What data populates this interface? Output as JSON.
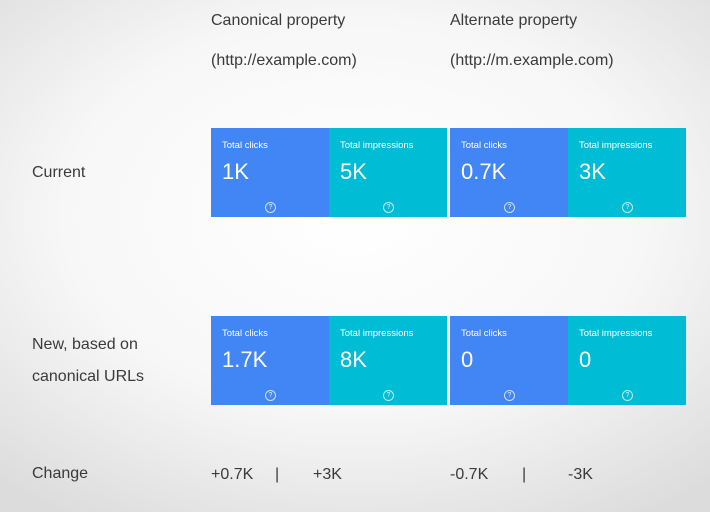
{
  "columns": {
    "canonical": {
      "title": "Canonical property",
      "url": "(http://example.com)"
    },
    "alternate": {
      "title": "Alternate property",
      "url": "(http://m.example.com)"
    }
  },
  "rows": {
    "current": {
      "label": "Current",
      "canonical": {
        "clicks_label": "Total clicks",
        "clicks": "1K",
        "impressions_label": "Total impressions",
        "impressions": "5K"
      },
      "alternate": {
        "clicks_label": "Total clicks",
        "clicks": "0.7K",
        "impressions_label": "Total impressions",
        "impressions": "3K"
      }
    },
    "new": {
      "label_line1": "New, based on",
      "label_line2": "canonical URLs",
      "canonical": {
        "clicks_label": "Total clicks",
        "clicks": "1.7K",
        "impressions_label": "Total impressions",
        "impressions": "8K"
      },
      "alternate": {
        "clicks_label": "Total clicks",
        "clicks": "0",
        "impressions_label": "Total impressions",
        "impressions": "0"
      }
    },
    "change": {
      "label": "Change",
      "canonical": {
        "clicks": "+0.7K",
        "separator": "|",
        "impressions": "+3K"
      },
      "alternate": {
        "clicks": "-0.7K",
        "separator": "|",
        "impressions": "-3K"
      }
    }
  },
  "help_glyph": "?",
  "icons": {
    "help": "question-circle-icon"
  },
  "colors": {
    "clicks_tile": "#4285f4",
    "impressions_tile": "#00bcd4"
  }
}
